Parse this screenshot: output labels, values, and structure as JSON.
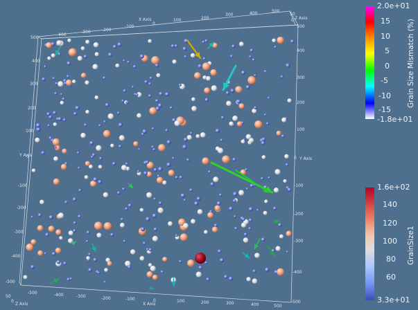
{
  "viewport": {
    "background": "#4f6f8f",
    "axes": {
      "x_axis_label": "X Axis",
      "y_axis_label": "Y Axis",
      "z_axis_label": "Z Axis",
      "x_ticks_top": [
        "-500",
        "-400",
        "-300",
        "-200",
        "-100",
        "0",
        "100",
        "200",
        "300",
        "400",
        "500"
      ],
      "y_ticks_left": [
        "-500",
        "-400",
        "-300",
        "-200",
        "-100",
        "0",
        "100",
        "200",
        "300",
        "400",
        "500"
      ],
      "y_ticks_right": [
        "500",
        "400",
        "300",
        "200",
        "100",
        "0",
        "-100",
        "-200",
        "-300",
        "-400",
        "-500"
      ],
      "x_ticks_bottom": [
        "-500",
        "-400",
        "-300",
        "-200",
        "-100",
        "0",
        "100",
        "200",
        "300",
        "400",
        "500"
      ],
      "z_ticks": [
        "50",
        "0"
      ],
      "y_axis_right_label": "Y Axis"
    }
  },
  "colorbar_mismatch": {
    "title": "Grain Size Mismatch (%)",
    "max_label": "2.0e+01",
    "min_label": "-1.8e+01",
    "ticks": [
      "15",
      "10",
      "5",
      "0",
      "-5",
      "-10",
      "-15"
    ],
    "colors": [
      "#ff00ff",
      "#ff0000",
      "#ffa500",
      "#ffff00",
      "#00ff00",
      "#00ffff",
      "#0000ff",
      "#ffffff"
    ]
  },
  "colorbar_grainsize": {
    "title": "GrainSize1",
    "max_label": "1.6e+02",
    "min_label": "3.3e+01",
    "ticks": [
      "140",
      "120",
      "100",
      "80",
      "60"
    ],
    "colors": [
      "#b40426",
      "#e7745b",
      "#f5c4ac",
      "#dddddd",
      "#aac7fd",
      "#7396f5",
      "#3b4cc0"
    ]
  }
}
